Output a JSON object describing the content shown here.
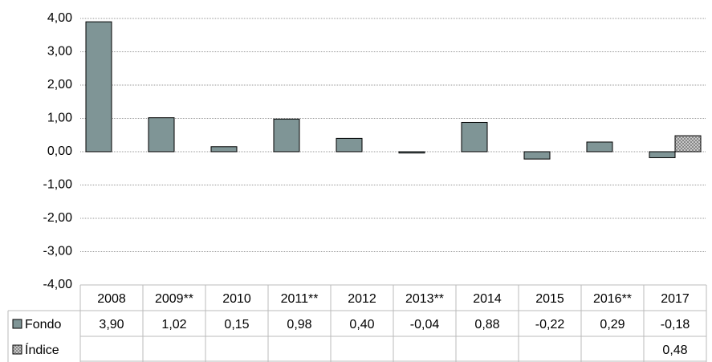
{
  "chart_data": {
    "type": "bar",
    "categories": [
      "2008",
      "2009**",
      "2010",
      "2011**",
      "2012",
      "2013**",
      "2014",
      "2015",
      "2016**",
      "2017"
    ],
    "series": [
      {
        "name": "Fondo",
        "color": "#7f9596",
        "values": [
          3.9,
          1.02,
          0.15,
          0.98,
          0.4,
          -0.04,
          0.88,
          -0.22,
          0.29,
          -0.18
        ],
        "value_labels": [
          "3,90",
          "1,02",
          "0,15",
          "0,98",
          "0,40",
          "-0,04",
          "0,88",
          "-0,22",
          "0,29",
          "-0,18"
        ]
      },
      {
        "name": "Índice",
        "color": "#c8c8c8",
        "values": [
          null,
          null,
          null,
          null,
          null,
          null,
          null,
          null,
          null,
          0.48
        ],
        "value_labels": [
          null,
          null,
          null,
          null,
          null,
          null,
          null,
          null,
          null,
          "0,48"
        ]
      }
    ],
    "ylim": [
      -4,
      4
    ],
    "yticks": [
      {
        "value": -4,
        "label": "-4,00"
      },
      {
        "value": -3,
        "label": "-3,00"
      },
      {
        "value": -2,
        "label": "-2,00"
      },
      {
        "value": -1,
        "label": "-1,00"
      },
      {
        "value": 0,
        "label": "0,00"
      },
      {
        "value": 1,
        "label": "1,00"
      },
      {
        "value": 2,
        "label": "2,00"
      },
      {
        "value": 3,
        "label": "3,00"
      },
      {
        "value": 4,
        "label": "4,00"
      }
    ],
    "grid": true
  }
}
